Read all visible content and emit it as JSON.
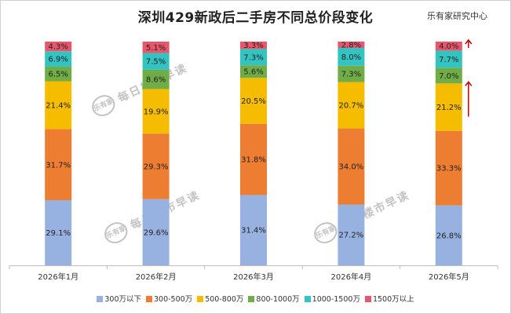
{
  "header": {
    "title": "深圳429新政后二手房不同总价段变化",
    "source": "乐有家研究中心"
  },
  "watermark": {
    "logo": "乐有家",
    "text": "每日楼市早读"
  },
  "colors": {
    "s1": "#97b2e0",
    "s2": "#ed7d31",
    "s3": "#f5bc00",
    "s4": "#70ad47",
    "s5": "#33c3c0",
    "s6": "#e8566b",
    "arrow": "#c00000"
  },
  "chart_data": {
    "type": "bar",
    "stacked": true,
    "normalized": true,
    "title": "深圳429新政后二手房不同总价段变化",
    "categories": [
      "2026年1月",
      "2026年2月",
      "2026年3月",
      "2026年4月",
      "2026年5月"
    ],
    "series": [
      {
        "name": "300万以下",
        "values": [
          29.1,
          29.6,
          31.4,
          27.2,
          26.8
        ],
        "labels": [
          "29.1%",
          "29.6%",
          "31.4%",
          "27.2%",
          "26.8%"
        ]
      },
      {
        "name": "300-500万",
        "values": [
          31.7,
          29.3,
          31.8,
          34.0,
          33.3
        ],
        "labels": [
          "31.7%",
          "29.3%",
          "31.8%",
          "34.0%",
          "33.3%"
        ]
      },
      {
        "name": "500-800万",
        "values": [
          21.4,
          19.9,
          20.5,
          20.7,
          21.2
        ],
        "labels": [
          "21.4%",
          "19.9%",
          "20.5%",
          "20.7%",
          "21.2%"
        ]
      },
      {
        "name": "800-1000万",
        "values": [
          6.5,
          8.6,
          5.6,
          7.3,
          7.0
        ],
        "labels": [
          "6.5%",
          "8.6%",
          "5.6%",
          "7.3%",
          "7.0%"
        ]
      },
      {
        "name": "1000-1500万",
        "values": [
          6.9,
          7.5,
          7.3,
          8.0,
          7.7
        ],
        "labels": [
          "6.9%",
          "7.5%",
          "7.3%",
          "8.0%",
          "7.7%"
        ]
      },
      {
        "name": "1500万以上",
        "values": [
          4.3,
          5.1,
          3.3,
          2.8,
          4.0
        ],
        "labels": [
          "4.3%",
          "5.1%",
          "3.3%",
          "2.8%",
          "4.0%"
        ]
      }
    ],
    "annotations": [
      {
        "type": "up-arrow",
        "category": "2026年5月",
        "series": "1500万以上"
      },
      {
        "type": "up-arrow",
        "category": "2026年5月",
        "series": "500-800万"
      }
    ],
    "legend": "bottom",
    "grid": false
  }
}
